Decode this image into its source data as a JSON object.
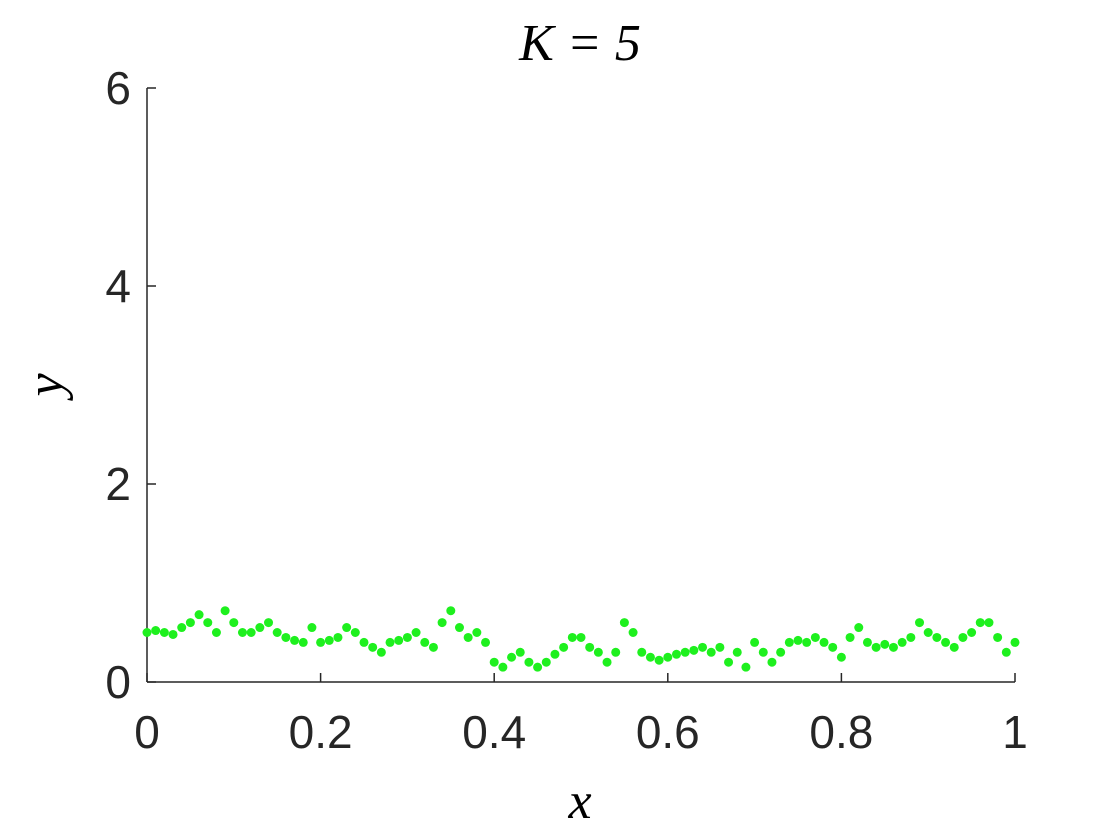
{
  "chart_data": {
    "type": "scatter",
    "title": "K = 5",
    "x_label": "x",
    "y_label": "y",
    "x": [
      0,
      0.01,
      0.02,
      0.03,
      0.04,
      0.05,
      0.06,
      0.07,
      0.08,
      0.09,
      0.1,
      0.11,
      0.12,
      0.13,
      0.14,
      0.15,
      0.16,
      0.17,
      0.18,
      0.19,
      0.2,
      0.21,
      0.22,
      0.23,
      0.24,
      0.25,
      0.26,
      0.27,
      0.28,
      0.29,
      0.3,
      0.31,
      0.32,
      0.33,
      0.34,
      0.35,
      0.36,
      0.37,
      0.38,
      0.39,
      0.4,
      0.41,
      0.42,
      0.43,
      0.44,
      0.45,
      0.46,
      0.47,
      0.48,
      0.49,
      0.5,
      0.51,
      0.52,
      0.53,
      0.54,
      0.55,
      0.56,
      0.57,
      0.58,
      0.59,
      0.6,
      0.61,
      0.62,
      0.63,
      0.64,
      0.65,
      0.66,
      0.67,
      0.68,
      0.69,
      0.7,
      0.71,
      0.72,
      0.73,
      0.74,
      0.75,
      0.76,
      0.77,
      0.78,
      0.79,
      0.8,
      0.81,
      0.82,
      0.83,
      0.84,
      0.85,
      0.86,
      0.87,
      0.88,
      0.89,
      0.9,
      0.91,
      0.92,
      0.93,
      0.94,
      0.95,
      0.96,
      0.97,
      0.98,
      0.99,
      1
    ],
    "values": [
      0.5,
      0.52,
      0.5,
      0.48,
      0.55,
      0.6,
      0.68,
      0.6,
      0.5,
      0.72,
      0.6,
      0.5,
      0.5,
      0.55,
      0.6,
      0.5,
      0.45,
      0.42,
      0.4,
      0.55,
      0.4,
      0.42,
      0.45,
      0.55,
      0.5,
      0.4,
      0.35,
      0.3,
      0.4,
      0.42,
      0.45,
      0.5,
      0.4,
      0.35,
      0.6,
      0.72,
      0.55,
      0.45,
      0.5,
      0.4,
      0.2,
      0.15,
      0.25,
      0.3,
      0.2,
      0.15,
      0.2,
      0.28,
      0.35,
      0.45,
      0.45,
      0.35,
      0.3,
      0.2,
      0.3,
      0.6,
      0.5,
      0.3,
      0.25,
      0.22,
      0.25,
      0.28,
      0.3,
      0.32,
      0.35,
      0.3,
      0.35,
      0.2,
      0.3,
      0.15,
      0.4,
      0.3,
      0.2,
      0.3,
      0.4,
      0.42,
      0.4,
      0.45,
      0.4,
      0.35,
      0.25,
      0.45,
      0.55,
      0.4,
      0.35,
      0.38,
      0.35,
      0.4,
      0.45,
      0.6,
      0.5,
      0.45,
      0.4,
      0.35,
      0.45,
      0.5,
      0.6,
      0.6,
      0.45,
      0.3,
      0.4
    ],
    "color": "#1ef01e",
    "xlim": [
      0,
      1
    ],
    "xticks": [
      0,
      0.2,
      0.4,
      0.6,
      0.8,
      1
    ],
    "ylim": [
      0,
      6
    ],
    "yticks": [
      0,
      2,
      4,
      6
    ]
  }
}
